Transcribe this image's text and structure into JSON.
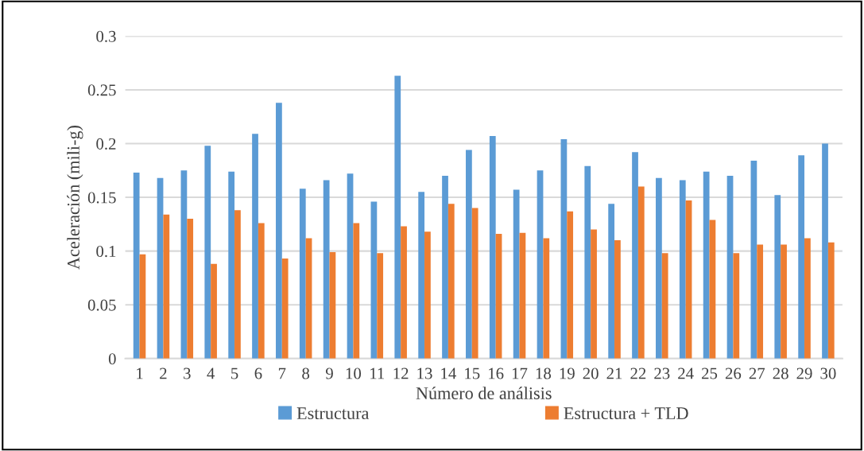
{
  "chart_data": {
    "type": "bar",
    "xlabel": "Número de análisis",
    "ylabel": "Aceleración (mili-g)",
    "categories": [
      "1",
      "2",
      "3",
      "4",
      "5",
      "6",
      "7",
      "8",
      "9",
      "10",
      "11",
      "12",
      "13",
      "14",
      "15",
      "16",
      "17",
      "18",
      "19",
      "20",
      "21",
      "22",
      "23",
      "24",
      "25",
      "26",
      "27",
      "28",
      "29",
      "30"
    ],
    "series": [
      {
        "name": "Estructura",
        "color": "#5b9bd5",
        "values": [
          0.173,
          0.168,
          0.175,
          0.198,
          0.174,
          0.209,
          0.238,
          0.158,
          0.166,
          0.172,
          0.146,
          0.263,
          0.155,
          0.17,
          0.194,
          0.207,
          0.157,
          0.175,
          0.204,
          0.179,
          0.144,
          0.192,
          0.168,
          0.166,
          0.174,
          0.17,
          0.184,
          0.152,
          0.189,
          0.2
        ]
      },
      {
        "name": "Estructura + TLD",
        "color": "#ed7d31",
        "values": [
          0.097,
          0.134,
          0.13,
          0.088,
          0.138,
          0.126,
          0.093,
          0.112,
          0.099,
          0.126,
          0.098,
          0.123,
          0.118,
          0.144,
          0.14,
          0.116,
          0.117,
          0.112,
          0.137,
          0.12,
          0.11,
          0.16,
          0.098,
          0.147,
          0.129,
          0.098,
          0.106,
          0.106,
          0.112,
          0.108
        ]
      }
    ],
    "ylim": [
      0,
      0.3
    ],
    "yticks": [
      0,
      0.05,
      0.1,
      0.15,
      0.2,
      0.25,
      0.3
    ],
    "grid": "y",
    "legend": "bottom"
  }
}
